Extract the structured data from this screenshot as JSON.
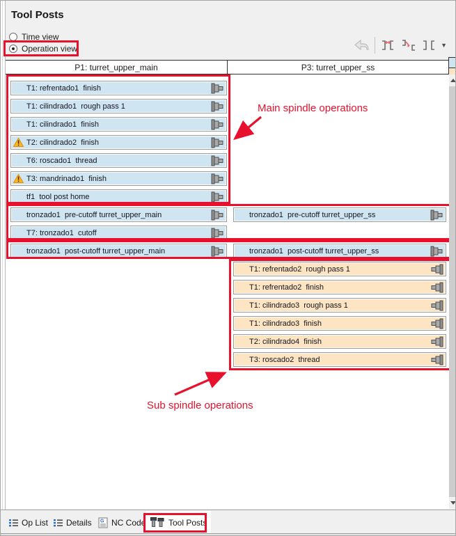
{
  "panel": {
    "title": "Tool Posts"
  },
  "view_options": {
    "time": {
      "label": "Time view",
      "selected": false
    },
    "operation": {
      "label": "Operation view",
      "selected": true
    }
  },
  "columns": [
    {
      "header": "P1: turret_upper_main",
      "side": "main",
      "rows": [
        {
          "slot": 0,
          "label": "T1: refrentado1  finish",
          "kind": "main",
          "warning": false
        },
        {
          "slot": 1,
          "label": "T1: cilindrado1  rough pass 1",
          "kind": "main",
          "warning": false
        },
        {
          "slot": 2,
          "label": "T1: cilindrado1  finish",
          "kind": "main",
          "warning": false
        },
        {
          "slot": 3,
          "label": "T2: cilindrado2  finish",
          "kind": "main",
          "warning": true
        },
        {
          "slot": 4,
          "label": "T6: roscado1  thread",
          "kind": "main",
          "warning": false
        },
        {
          "slot": 5,
          "label": "T3: mandrinado1  finish",
          "kind": "main",
          "warning": true
        },
        {
          "slot": 6,
          "label": "tf1  tool post home",
          "kind": "main",
          "warning": false
        },
        {
          "slot": 7,
          "label": "tronzado1  pre-cutoff turret_upper_main",
          "kind": "main",
          "warning": false
        },
        {
          "slot": 8,
          "label": "T7: tronzado1  cutoff",
          "kind": "main",
          "warning": false
        },
        {
          "slot": 9,
          "label": "tronzado1  post-cutoff turret_upper_main",
          "kind": "main",
          "warning": false
        }
      ]
    },
    {
      "header": "P3: turret_upper_ss",
      "side": "sub",
      "rows": [
        {
          "slot": 7,
          "label": "tronzado1  pre-cutoff turret_upper_ss",
          "kind": "main",
          "warning": false
        },
        {
          "slot": 9,
          "label": "tronzado1  post-cutoff turret_upper_ss",
          "kind": "main",
          "warning": false
        },
        {
          "slot": 10,
          "label": "T1: refrentado2  rough pass 1",
          "kind": "sub",
          "warning": false
        },
        {
          "slot": 11,
          "label": "T1: refrentado2  finish",
          "kind": "sub",
          "warning": false
        },
        {
          "slot": 12,
          "label": "T1: cilindrado3  rough pass 1",
          "kind": "sub",
          "warning": false
        },
        {
          "slot": 13,
          "label": "T1: cilindrado3  finish",
          "kind": "sub",
          "warning": false
        },
        {
          "slot": 14,
          "label": "T2: cilindrado4  finish",
          "kind": "sub",
          "warning": false
        },
        {
          "slot": 15,
          "label": "T3: roscado2  thread",
          "kind": "sub",
          "warning": false
        }
      ]
    }
  ],
  "annotations": {
    "main_label": "Main spindle operations",
    "sub_label": "Sub spindle operations"
  },
  "tabs": [
    {
      "label": "Op List",
      "active": false
    },
    {
      "label": "Details",
      "active": false
    },
    {
      "label": "NC Code",
      "active": false
    },
    {
      "label": "Tool Posts",
      "active": true
    }
  ],
  "colors": {
    "main_row": "#cfe5f2",
    "sub_row": "#fde4c2",
    "annotation_red": "#e8112d",
    "bar_border": "#9b9b9b"
  }
}
